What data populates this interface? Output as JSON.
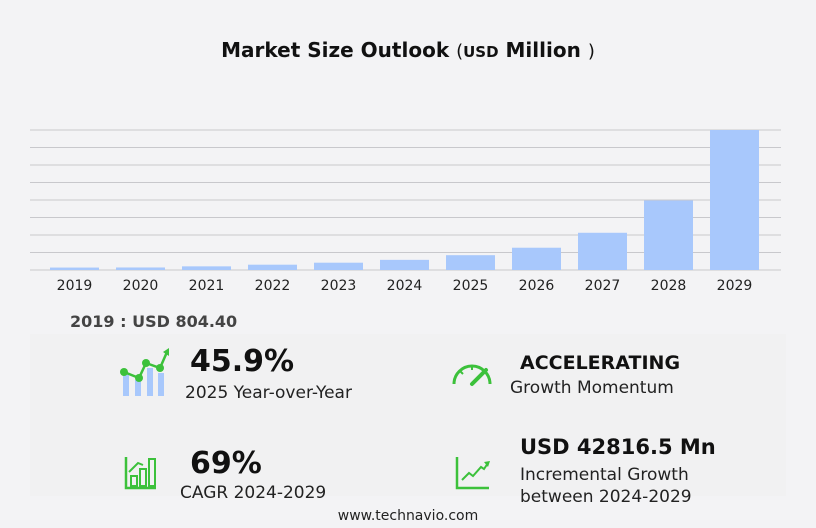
{
  "title": {
    "main": "Market Size Outlook",
    "open": "(",
    "unit": "USD",
    "unit_word": "Million",
    "close": ")"
  },
  "chart_data": {
    "type": "bar",
    "categories": [
      "2019",
      "2020",
      "2021",
      "2022",
      "2023",
      "2024",
      "2025",
      "2026",
      "2027",
      "2028",
      "2029"
    ],
    "values": [
      804.4,
      830,
      1206,
      1754,
      2412,
      3348,
      4885,
      7345,
      12278,
      22912,
      46164
    ],
    "ylim": [
      0,
      46164
    ],
    "grid": true,
    "bar_color": "#a8c8fc",
    "title": "Market Size Outlook (USD Million)"
  },
  "base_year": {
    "label": "2019 : USD  804.40"
  },
  "stats": {
    "yoy": {
      "value": "45.9%",
      "label": "2025 Year-over-Year",
      "icon": "bar-line-growth-icon"
    },
    "momentum": {
      "value": "ACCELERATING",
      "label": "Growth Momentum",
      "icon": "speedometer-icon"
    },
    "cagr": {
      "value": "69%",
      "label": "CAGR 2024-2029",
      "icon": "bar-chart-growth-icon"
    },
    "incremental": {
      "value": "USD 42816.5 Mn",
      "label1": "Incremental Growth",
      "label2": "between 2024-2029",
      "icon": "trend-line-icon"
    }
  },
  "colors": {
    "accent": "#3cc13b",
    "bar": "#a8c8fc"
  },
  "footer": "www.technavio.com"
}
